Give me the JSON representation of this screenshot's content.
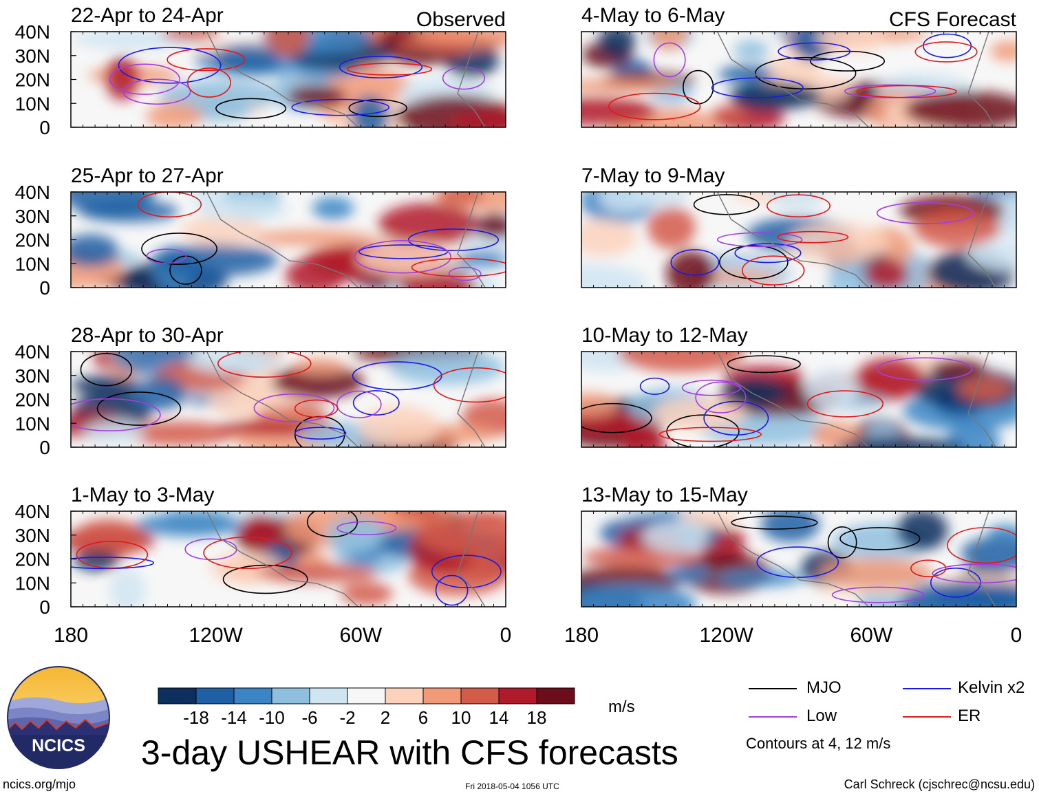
{
  "chart_data": {
    "type": "heatmap",
    "title": "3-day USHEAR with CFS forecasts",
    "units": "m/s",
    "column_headers": {
      "left": "Observed",
      "right": "CFS Forecast"
    },
    "latitude_ticks": [
      "40N",
      "30N",
      "20N",
      "10N",
      "0"
    ],
    "longitude_ticks": [
      "180",
      "120W",
      "60W",
      "0"
    ],
    "panels": [
      {
        "label": "22-Apr to 24-Apr",
        "kind": "observed"
      },
      {
        "label": "25-Apr to 27-Apr",
        "kind": "observed"
      },
      {
        "label": "28-Apr to 30-Apr",
        "kind": "observed"
      },
      {
        "label": "1-May to 3-May",
        "kind": "observed"
      },
      {
        "label": "4-May to 6-May",
        "kind": "forecast"
      },
      {
        "label": "7-May to 9-May",
        "kind": "forecast"
      },
      {
        "label": "10-May to 12-May",
        "kind": "forecast"
      },
      {
        "label": "13-May to 15-May",
        "kind": "forecast"
      }
    ],
    "colorbar": {
      "ticks": [
        "-18",
        "-14",
        "-10",
        "-6",
        "-2",
        "2",
        "6",
        "10",
        "14",
        "18"
      ],
      "colors": [
        "#0d2f5e",
        "#1f5fa3",
        "#3b85c4",
        "#8fbfdf",
        "#d0e5f2",
        "#f7f7f7",
        "#fcd2bd",
        "#f09a78",
        "#d45a4a",
        "#b01b2c",
        "#6b0d1b"
      ]
    },
    "legend": [
      {
        "name": "MJO",
        "color": "#000000"
      },
      {
        "name": "Kelvin x2",
        "color": "#1a1ae6"
      },
      {
        "name": "Low",
        "color": "#a23ee0"
      },
      {
        "name": "ER",
        "color": "#e01a1a"
      }
    ],
    "contour_note": "Contours at 4, 12 m/s"
  },
  "footer": {
    "site": "ncics.org/mjo",
    "timestamp": "Fri 2018-05-04 1056 UTC",
    "author": "Carl Schreck (cjschrec@ncsu.edu)",
    "logo_text": "NCICS"
  }
}
